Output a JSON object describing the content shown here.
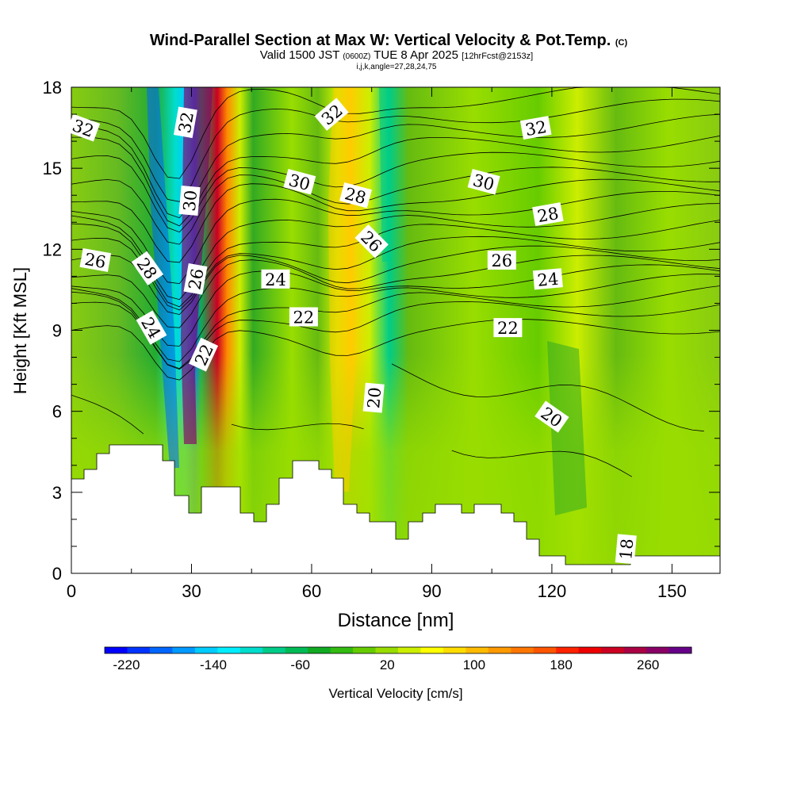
{
  "title": "Wind-Parallel Section at Max W: Vertical Velocity & Pot.Temp.",
  "title_mark": "(C)",
  "valid_line": {
    "prefix": "Valid 1500 JST",
    "utc": "(0600Z)",
    "date": "TUE 8 Apr 2025",
    "fcst": "[12hrFcst@2153z]"
  },
  "grid_line": "i,j,k,angle=27,28,24,75",
  "chart_data": {
    "type": "heatmap",
    "xlabel": "Distance [nm]",
    "ylabel": "Height [Kft MSL]",
    "xlim": [
      0,
      162
    ],
    "ylim": [
      0,
      18
    ],
    "x_ticks": [
      "0",
      "30",
      "60",
      "90",
      "120",
      "150"
    ],
    "y_ticks": [
      "0",
      "3",
      "6",
      "9",
      "12",
      "15",
      "18"
    ],
    "filled_field": "Vertical Velocity [cm/s]",
    "contour_field": "Potential Temperature",
    "contour_labels": [
      {
        "v": "32",
        "x": 3,
        "y": 16.5,
        "r": 20
      },
      {
        "v": "32",
        "x": 28.5,
        "y": 16.7,
        "r": -80
      },
      {
        "v": "32",
        "x": 65,
        "y": 17,
        "r": -40
      },
      {
        "v": "32",
        "x": 116,
        "y": 16.5,
        "r": -10
      },
      {
        "v": "30",
        "x": 57,
        "y": 14.5,
        "r": 15
      },
      {
        "v": "30",
        "x": 103,
        "y": 14.5,
        "r": 15
      },
      {
        "v": "30",
        "x": 29.5,
        "y": 13.8,
        "r": -85
      },
      {
        "v": "28",
        "x": 71,
        "y": 14,
        "r": 15
      },
      {
        "v": "28",
        "x": 119,
        "y": 13.3,
        "r": -10
      },
      {
        "v": "28",
        "x": 19,
        "y": 11.3,
        "r": 55
      },
      {
        "v": "26",
        "x": 6,
        "y": 11.6,
        "r": 10
      },
      {
        "v": "26",
        "x": 31,
        "y": 10.9,
        "r": -80
      },
      {
        "v": "26",
        "x": 75,
        "y": 12.3,
        "r": 45
      },
      {
        "v": "26",
        "x": 107.5,
        "y": 11.6,
        "r": 0
      },
      {
        "v": "24",
        "x": 51,
        "y": 10.9,
        "r": 0
      },
      {
        "v": "24",
        "x": 119,
        "y": 10.9,
        "r": -5
      },
      {
        "v": "24",
        "x": 20,
        "y": 9.1,
        "r": 60
      },
      {
        "v": "22",
        "x": 58,
        "y": 9.5,
        "r": 0
      },
      {
        "v": "22",
        "x": 109,
        "y": 9.1,
        "r": 0
      },
      {
        "v": "22",
        "x": 33,
        "y": 8.1,
        "r": -65
      },
      {
        "v": "20",
        "x": 75.5,
        "y": 6.5,
        "r": -85
      },
      {
        "v": "20",
        "x": 120,
        "y": 5.8,
        "r": 35
      },
      {
        "v": "18",
        "x": 138.5,
        "y": 0.9,
        "r": -85
      }
    ],
    "colorbar": {
      "label": "Vertical Velocity [cm/s]",
      "tick_labels": [
        "-220",
        "-140",
        "-60",
        "20",
        "100",
        "180",
        "260"
      ],
      "range": [
        -240,
        300
      ],
      "colors": [
        "#0000ff",
        "#0033ff",
        "#0066ff",
        "#0099ff",
        "#00ccff",
        "#00eeff",
        "#00ddcc",
        "#00cc88",
        "#00bb55",
        "#11aa22",
        "#33bb11",
        "#66cc00",
        "#99dd00",
        "#ccee00",
        "#ffff00",
        "#ffdd00",
        "#ffbb00",
        "#ff9900",
        "#ff7700",
        "#ff5500",
        "#ff2200",
        "#ee0000",
        "#cc0022",
        "#aa0044",
        "#880066",
        "#660088"
      ]
    }
  }
}
